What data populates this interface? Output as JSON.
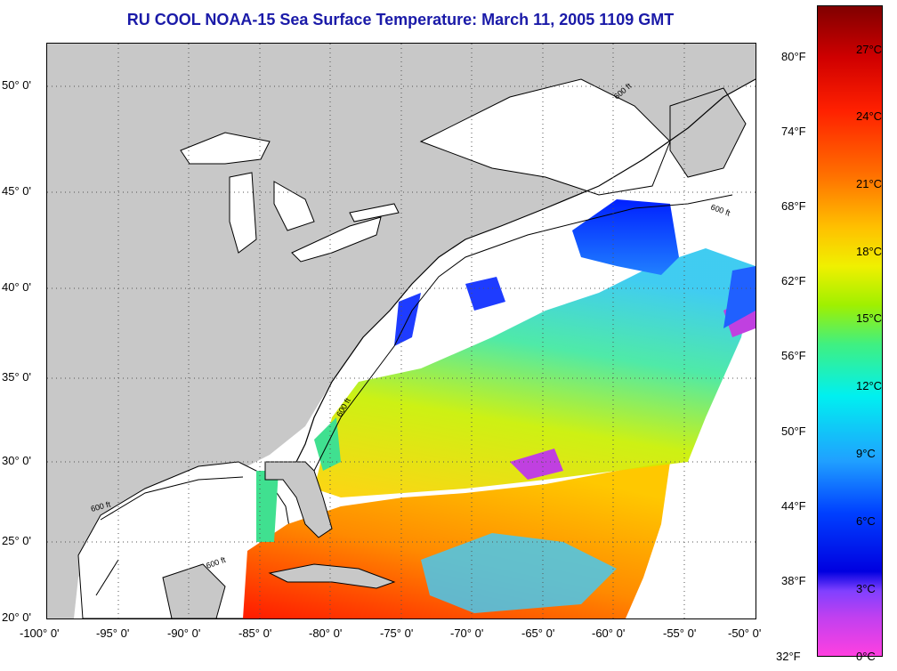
{
  "title": "RU COOL  NOAA-15  Sea Surface Temperature:  March 11, 2005 1109 GMT",
  "colors": {
    "title": "#1a1aa8",
    "land": "#c8c8c8",
    "cloud": "#ffffff"
  },
  "axes": {
    "lat_labels": [
      "50° 0'",
      "45° 0'",
      "40° 0'",
      "35° 0'",
      "30° 0'",
      "25° 0'",
      "20° 0'"
    ],
    "lon_labels": [
      "-100° 0'",
      "-95° 0'",
      "-90° 0'",
      "-85° 0'",
      "-80° 0'",
      "-75° 0'",
      "-70° 0'",
      "-65° 0'",
      "-60° 0'",
      "-55° 0'",
      "-50° 0'"
    ]
  },
  "map_labels": [
    "600 ft",
    "600 ft",
    "600 ft",
    "600 ft",
    "600 ft"
  ],
  "colorbar": {
    "fahrenheit": [
      "80°F",
      "74°F",
      "68°F",
      "62°F",
      "56°F",
      "50°F",
      "44°F",
      "38°F",
      "32°F"
    ],
    "celsius": [
      "27°C",
      "24°C",
      "21°C",
      "18°C",
      "15°C",
      "12°C",
      "9°C",
      "6°C",
      "3°C",
      "0°C"
    ]
  }
}
